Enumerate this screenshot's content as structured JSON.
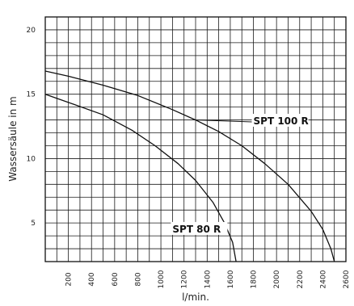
{
  "chart_data": {
    "type": "line",
    "title": "",
    "xlabel": "l/min.",
    "ylabel": "Wassersäule in m",
    "xlim": [
      0,
      2600
    ],
    "ylim": [
      2,
      21
    ],
    "grid": true,
    "x_ticks": [
      200,
      400,
      600,
      800,
      1000,
      1200,
      1400,
      1600,
      1800,
      2000,
      2200,
      2400,
      2600
    ],
    "x_tick_labels": [
      "200",
      "400",
      "600",
      "800",
      "1000",
      "1200",
      "1400",
      "1600",
      "1800",
      "2000",
      "2200",
      "2400",
      "2600"
    ],
    "y_ticks": [
      5,
      10,
      15,
      20
    ],
    "y_tick_labels": [
      "5",
      "10",
      "15",
      "20"
    ],
    "series": [
      {
        "name": "SPT 100 R",
        "color": "#111111",
        "x": [
          0,
          200,
          500,
          800,
          1100,
          1300,
          1500,
          1700,
          1900,
          2100,
          2300,
          2400,
          2470,
          2500
        ],
        "y": [
          16.8,
          16.4,
          15.7,
          14.9,
          13.8,
          13.0,
          12.1,
          11.0,
          9.6,
          8.0,
          5.9,
          4.5,
          3.0,
          2.0
        ]
      },
      {
        "name": "SPT 80 R",
        "color": "#111111",
        "x": [
          0,
          250,
          500,
          750,
          950,
          1150,
          1300,
          1450,
          1550,
          1620,
          1650
        ],
        "y": [
          15.0,
          14.2,
          13.4,
          12.2,
          11.0,
          9.6,
          8.3,
          6.6,
          5.0,
          3.5,
          2.0
        ]
      }
    ],
    "annotations": [
      {
        "text": "SPT 100 R",
        "x": 1800,
        "y": 12.6,
        "arrow_to": [
          1300,
          13.0
        ]
      },
      {
        "text": "SPT 80 R",
        "x": 1100,
        "y": 4.2,
        "arrow_to": [
          1540,
          4.2
        ]
      }
    ]
  }
}
